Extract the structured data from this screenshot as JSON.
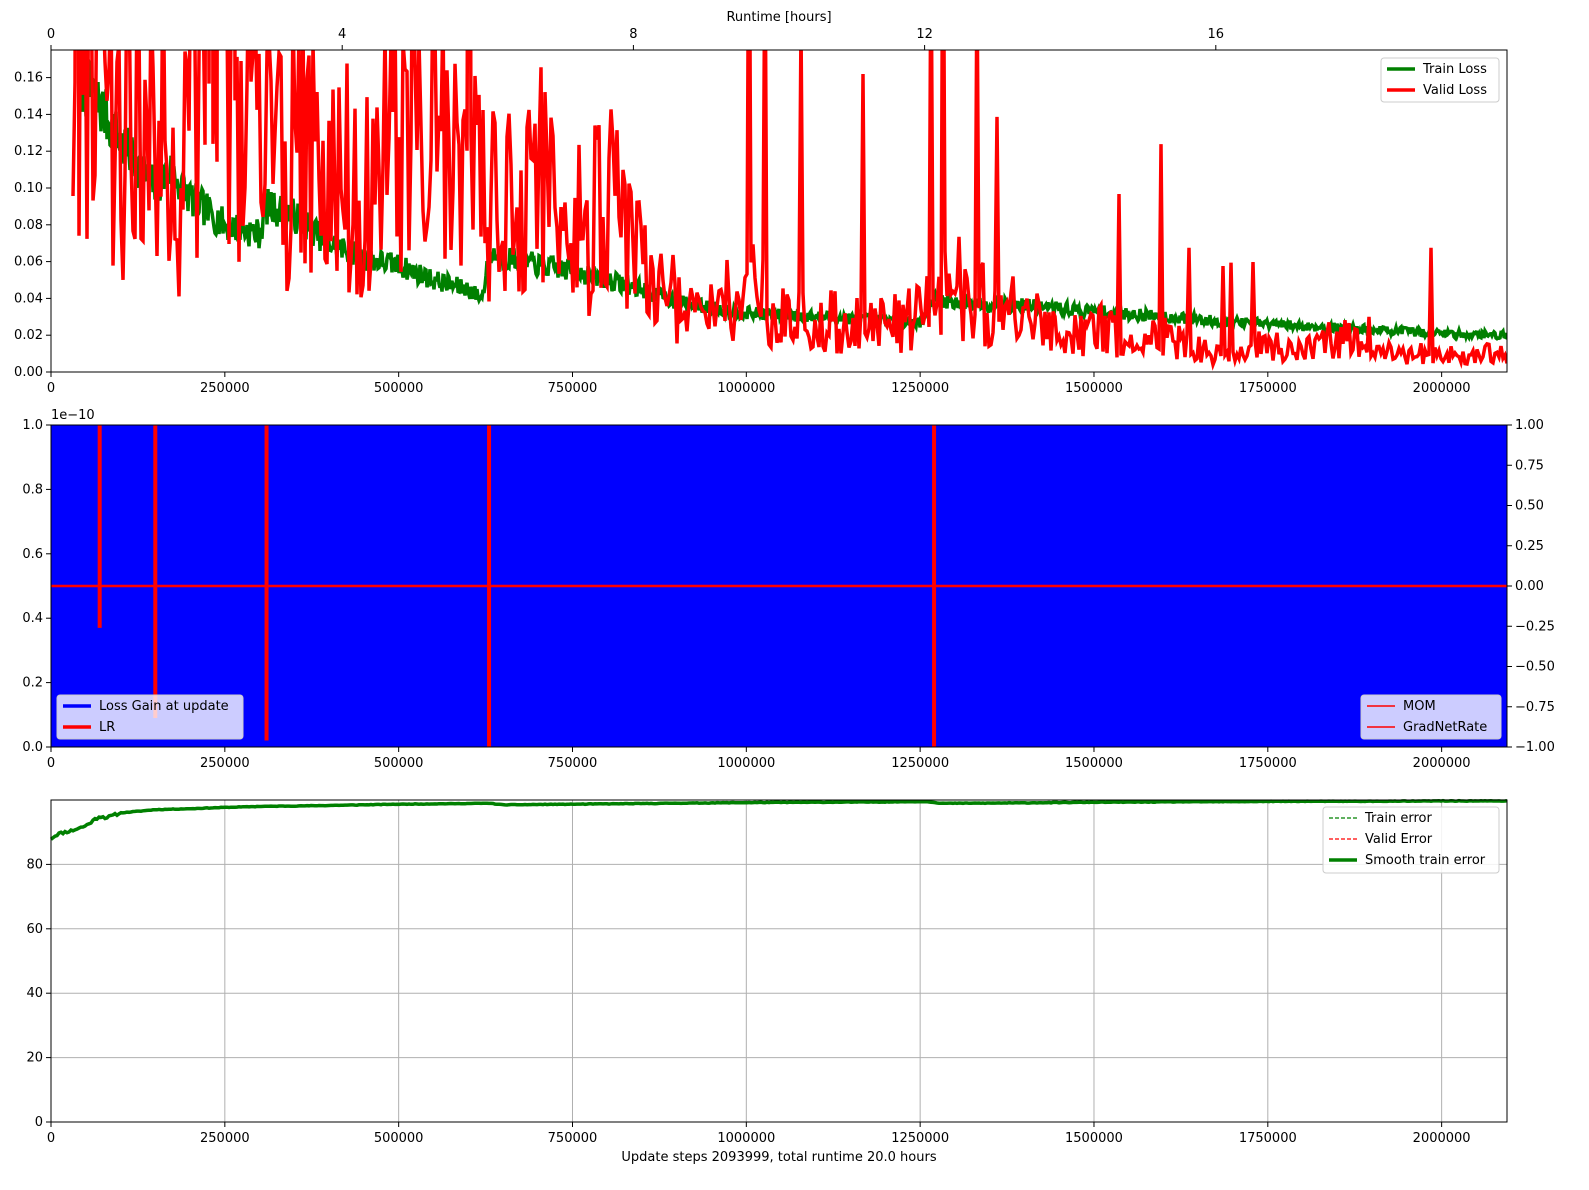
{
  "chart_data": [
    {
      "type": "line",
      "xlabel": "",
      "ylabel": "",
      "xlim": [
        0,
        2094000
      ],
      "ylim": [
        0,
        0.175
      ],
      "x_ticks": [
        "0",
        "250000",
        "500000",
        "750000",
        "1000000",
        "1250000",
        "1500000",
        "1750000",
        "2000000"
      ],
      "y_ticks": [
        "0.00",
        "0.02",
        "0.04",
        "0.06",
        "0.08",
        "0.10",
        "0.12",
        "0.14",
        "0.16"
      ],
      "top_axis": {
        "label": "Runtime [hours]",
        "range": [
          0,
          20
        ],
        "ticks": [
          "0",
          "4",
          "8",
          "12",
          "16"
        ]
      },
      "grid": false,
      "legend_position": "top-right",
      "series": [
        {
          "name": "Train Loss",
          "color": "#008000",
          "x": [
            40000,
            70000,
            100000,
            130000,
            150000,
            170000,
            200000,
            250000,
            300000,
            310000,
            350000,
            400000,
            450000,
            500000,
            550000,
            600000,
            620000,
            630000,
            700000,
            750000,
            800000,
            850000,
            900000,
            950000,
            1000000,
            1100000,
            1200000,
            1250000,
            1270000,
            1300000,
            1400000,
            1500000,
            1600000,
            1700000,
            1800000,
            1900000,
            2000000,
            2090000
          ],
          "y": [
            0.16,
            0.145,
            0.125,
            0.11,
            0.1,
            0.11,
            0.095,
            0.08,
            0.075,
            0.09,
            0.085,
            0.07,
            0.062,
            0.058,
            0.05,
            0.045,
            0.04,
            0.065,
            0.058,
            0.055,
            0.05,
            0.045,
            0.038,
            0.035,
            0.032,
            0.03,
            0.028,
            0.027,
            0.04,
            0.038,
            0.036,
            0.033,
            0.03,
            0.027,
            0.025,
            0.023,
            0.021,
            0.02
          ]
        },
        {
          "name": "Valid Loss",
          "color": "#ff0000",
          "x": [
            30000,
            60000,
            90000,
            120000,
            150000,
            170000,
            200000,
            250000,
            300000,
            350000,
            400000,
            450000,
            500000,
            550000,
            600000,
            650000,
            700000,
            750000,
            800000,
            850000,
            900000,
            950000,
            1000000,
            1050000,
            1100000,
            1150000,
            1200000,
            1250000,
            1300000,
            1350000,
            1400000,
            1450000,
            1500000,
            1550000,
            1600000,
            1650000,
            1700000,
            1750000,
            1800000,
            1850000,
            1900000,
            1950000,
            2000000,
            2050000,
            2090000
          ],
          "y": [
            0.14,
            0.16,
            0.12,
            0.15,
            0.13,
            0.07,
            0.16,
            0.17,
            0.13,
            0.12,
            0.11,
            0.1,
            0.12,
            0.13,
            0.1,
            0.09,
            0.11,
            0.08,
            0.09,
            0.06,
            0.04,
            0.03,
            0.05,
            0.03,
            0.025,
            0.03,
            0.025,
            0.03,
            0.05,
            0.035,
            0.03,
            0.02,
            0.025,
            0.015,
            0.02,
            0.012,
            0.01,
            0.015,
            0.012,
            0.02,
            0.01,
            0.01,
            0.01,
            0.008,
            0.012
          ]
        }
      ]
    },
    {
      "type": "line",
      "xlabel": "",
      "ylabel": "",
      "xlim": [
        0,
        2094000
      ],
      "ylim": [
        0,
        1e-10
      ],
      "y_offset_label": "1e−10",
      "x_ticks": [
        "0",
        "250000",
        "500000",
        "750000",
        "1000000",
        "1250000",
        "1500000",
        "1750000",
        "2000000"
      ],
      "y_ticks": [
        "0.0",
        "0.2",
        "0.4",
        "0.6",
        "0.8",
        "1.0"
      ],
      "right_axis": {
        "range": [
          -1,
          1
        ],
        "ticks": [
          "−1.00",
          "−0.75",
          "−0.50",
          "−0.25",
          "0.00",
          "0.25",
          "0.50",
          "0.75",
          "1.00"
        ]
      },
      "grid": false,
      "legends": [
        {
          "position": "lower-left",
          "entries": [
            "Loss Gain at update",
            "LR"
          ]
        },
        {
          "position": "lower-right",
          "entries": [
            "MOM",
            "GradNetRate"
          ]
        }
      ],
      "series": [
        {
          "name": "Loss Gain at update",
          "color": "#0000ff",
          "fill": true,
          "axis": "left",
          "x": [
            0,
            2094000
          ],
          "y": [
            1e-10,
            1e-10
          ]
        },
        {
          "name": "LR",
          "color": "#ff0000",
          "axis": "left",
          "spikes": [
            {
              "x": 70000,
              "y_low": 3.7e-11
            },
            {
              "x": 150000,
              "y_low": 9e-12
            },
            {
              "x": 310000,
              "y_low": 2e-12
            },
            {
              "x": 630000,
              "y_low": 0
            },
            {
              "x": 1270000,
              "y_low": 0
            }
          ]
        },
        {
          "name": "MOM",
          "color": "#ff0000",
          "axis": "right",
          "x": [
            0,
            2094000
          ],
          "y": [
            0,
            0
          ]
        },
        {
          "name": "GradNetRate",
          "color": "#ff0000",
          "axis": "right",
          "x": [
            0,
            2094000
          ],
          "y": [
            0,
            0
          ]
        }
      ]
    },
    {
      "type": "line",
      "xlabel": "Update steps 2093999, total runtime 20.0 hours",
      "ylabel": "",
      "xlim": [
        0,
        2094000
      ],
      "ylim": [
        0,
        100
      ],
      "x_ticks": [
        "0",
        "250000",
        "500000",
        "750000",
        "1000000",
        "1250000",
        "1500000",
        "1750000",
        "2000000"
      ],
      "y_ticks": [
        "0",
        "20",
        "40",
        "60",
        "80"
      ],
      "grid": true,
      "legend_position": "top-right",
      "series": [
        {
          "name": "Train error",
          "color": "#008000",
          "style": "dashed",
          "x": [],
          "y": []
        },
        {
          "name": "Valid Error",
          "color": "#ff0000",
          "style": "dashed",
          "x": [],
          "y": []
        },
        {
          "name": "Smooth train error",
          "color": "#008000",
          "x": [
            0,
            10000,
            30000,
            50000,
            70000,
            80000,
            100000,
            150000,
            200000,
            250000,
            300000,
            400000,
            500000,
            600000,
            630000,
            650000,
            700000,
            800000,
            900000,
            1000000,
            1100000,
            1200000,
            1260000,
            1280000,
            1300000,
            1400000,
            1500000,
            1600000,
            1700000,
            1800000,
            1900000,
            2000000,
            2094000
          ],
          "y": [
            88,
            89.5,
            90.5,
            92,
            95,
            94.5,
            96,
            97,
            97.3,
            97.7,
            98,
            98.3,
            98.7,
            98.9,
            99,
            98.5,
            98.6,
            98.8,
            99,
            99.2,
            99.3,
            99.4,
            99.5,
            99,
            99,
            99.1,
            99.3,
            99.4,
            99.5,
            99.6,
            99.6,
            99.7,
            99.7
          ]
        }
      ]
    }
  ]
}
